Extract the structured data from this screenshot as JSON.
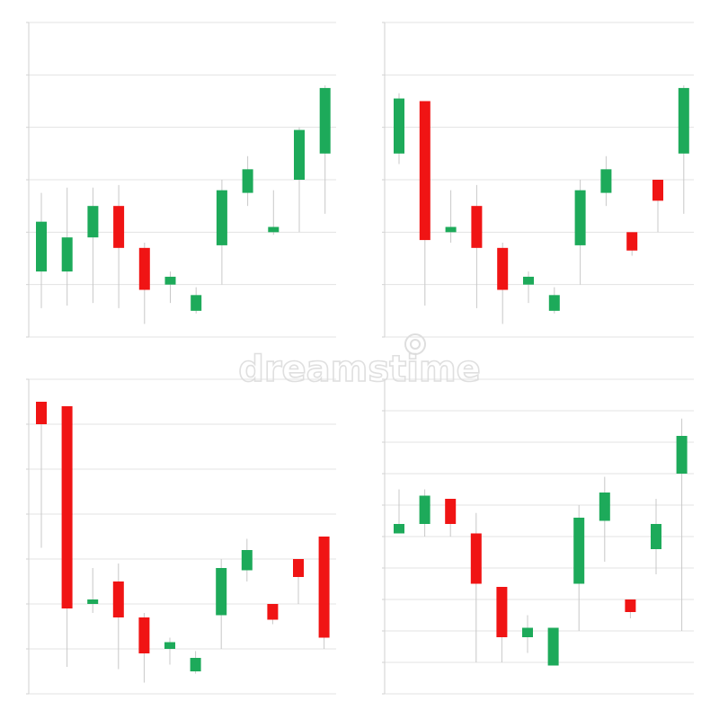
{
  "colors": {
    "bull": "#1daa5a",
    "bear": "#f01414",
    "grid": "#e3e3e3",
    "wick": "#c8c8c8",
    "axis": "#d2d2d2"
  },
  "watermark": {
    "text": "dreamstime"
  },
  "chart_data": [
    {
      "type": "candlestick",
      "panel": "top-left",
      "grid": true,
      "ylim": [
        0,
        6
      ],
      "y_ticks": [
        0,
        1,
        2,
        3,
        4,
        5,
        6
      ],
      "candles": [
        {
          "open": 1.25,
          "high": 2.75,
          "low": 0.55,
          "close": 2.2
        },
        {
          "open": 1.25,
          "high": 2.85,
          "low": 0.6,
          "close": 1.9
        },
        {
          "open": 1.9,
          "high": 2.85,
          "low": 0.65,
          "close": 2.5
        },
        {
          "open": 2.5,
          "high": 2.9,
          "low": 0.55,
          "close": 1.7
        },
        {
          "open": 1.7,
          "high": 1.8,
          "low": 0.25,
          "close": 0.9
        },
        {
          "open": 1.0,
          "high": 1.25,
          "low": 0.65,
          "close": 1.15
        },
        {
          "open": 0.5,
          "high": 0.95,
          "low": 0.45,
          "close": 0.8
        },
        {
          "open": 1.75,
          "high": 3.0,
          "low": 1.0,
          "close": 2.8
        },
        {
          "open": 2.75,
          "high": 3.45,
          "low": 2.5,
          "close": 3.2
        },
        {
          "open": 2.0,
          "high": 2.8,
          "low": 1.95,
          "close": 2.1
        },
        {
          "open": 3.0,
          "high": 4.0,
          "low": 2.0,
          "close": 3.95
        },
        {
          "open": 3.5,
          "high": 4.8,
          "low": 2.35,
          "close": 4.75
        }
      ]
    },
    {
      "type": "candlestick",
      "panel": "top-right",
      "grid": true,
      "ylim": [
        0,
        6
      ],
      "y_ticks": [
        0,
        1,
        2,
        3,
        4,
        5,
        6
      ],
      "candles": [
        {
          "open": 3.5,
          "high": 4.65,
          "low": 3.3,
          "close": 4.55
        },
        {
          "open": 4.5,
          "high": 4.5,
          "low": 0.6,
          "close": 1.85
        },
        {
          "open": 2.0,
          "high": 2.8,
          "low": 1.8,
          "close": 2.1
        },
        {
          "open": 2.5,
          "high": 2.9,
          "low": 0.55,
          "close": 1.7
        },
        {
          "open": 1.7,
          "high": 1.8,
          "low": 0.25,
          "close": 0.9
        },
        {
          "open": 1.0,
          "high": 1.25,
          "low": 0.65,
          "close": 1.15
        },
        {
          "open": 0.5,
          "high": 0.95,
          "low": 0.45,
          "close": 0.8
        },
        {
          "open": 1.75,
          "high": 3.0,
          "low": 1.0,
          "close": 2.8
        },
        {
          "open": 2.75,
          "high": 3.45,
          "low": 2.5,
          "close": 3.2
        },
        {
          "open": 2.0,
          "high": 2.0,
          "low": 1.55,
          "close": 1.65
        },
        {
          "open": 3.0,
          "high": 3.0,
          "low": 2.0,
          "close": 2.6
        },
        {
          "open": 3.5,
          "high": 4.8,
          "low": 2.35,
          "close": 4.75
        }
      ]
    },
    {
      "type": "candlestick",
      "panel": "bottom-left",
      "grid": true,
      "ylim": [
        0,
        7
      ],
      "y_ticks": [
        0,
        1,
        2,
        3,
        4,
        5,
        6,
        7
      ],
      "candles": [
        {
          "open": 6.5,
          "high": 6.5,
          "low": 3.25,
          "close": 6.0
        },
        {
          "open": 6.4,
          "high": 6.4,
          "low": 0.6,
          "close": 1.9
        },
        {
          "open": 2.0,
          "high": 2.8,
          "low": 1.8,
          "close": 2.1
        },
        {
          "open": 2.5,
          "high": 2.9,
          "low": 0.55,
          "close": 1.7
        },
        {
          "open": 1.7,
          "high": 1.8,
          "low": 0.25,
          "close": 0.9
        },
        {
          "open": 1.0,
          "high": 1.25,
          "low": 0.65,
          "close": 1.15
        },
        {
          "open": 0.5,
          "high": 0.95,
          "low": 0.45,
          "close": 0.8
        },
        {
          "open": 1.75,
          "high": 3.0,
          "low": 1.0,
          "close": 2.8
        },
        {
          "open": 2.75,
          "high": 3.45,
          "low": 2.5,
          "close": 3.2
        },
        {
          "open": 2.0,
          "high": 2.0,
          "low": 1.55,
          "close": 1.65
        },
        {
          "open": 3.0,
          "high": 3.0,
          "low": 2.0,
          "close": 2.6
        },
        {
          "open": 3.5,
          "high": 3.5,
          "low": 1.0,
          "close": 1.25
        }
      ]
    },
    {
      "type": "candlestick",
      "panel": "bottom-right",
      "grid": true,
      "ylim": [
        0,
        10
      ],
      "y_ticks": [
        0,
        1,
        2,
        3,
        4,
        5,
        6,
        7,
        8,
        9,
        10
      ],
      "candles": [
        {
          "open": 5.1,
          "high": 6.5,
          "low": 5.1,
          "close": 5.4
        },
        {
          "open": 5.4,
          "high": 6.5,
          "low": 5.0,
          "close": 6.3
        },
        {
          "open": 6.2,
          "high": 6.2,
          "low": 5.0,
          "close": 5.4
        },
        {
          "open": 5.1,
          "high": 5.75,
          "low": 1.0,
          "close": 3.5
        },
        {
          "open": 3.4,
          "high": 3.4,
          "low": 1.0,
          "close": 1.8
        },
        {
          "open": 1.8,
          "high": 2.5,
          "low": 1.3,
          "close": 2.1
        },
        {
          "open": 0.9,
          "high": 2.1,
          "low": 0.9,
          "close": 2.1
        },
        {
          "open": 3.5,
          "high": 6.0,
          "low": 2.0,
          "close": 5.6
        },
        {
          "open": 5.5,
          "high": 6.9,
          "low": 4.2,
          "close": 6.4
        },
        {
          "open": 3.0,
          "high": 3.0,
          "low": 2.4,
          "close": 2.6
        },
        {
          "open": 4.6,
          "high": 6.2,
          "low": 3.8,
          "close": 5.4
        },
        {
          "open": 7.0,
          "high": 8.75,
          "low": 2.0,
          "close": 8.2
        }
      ]
    }
  ]
}
